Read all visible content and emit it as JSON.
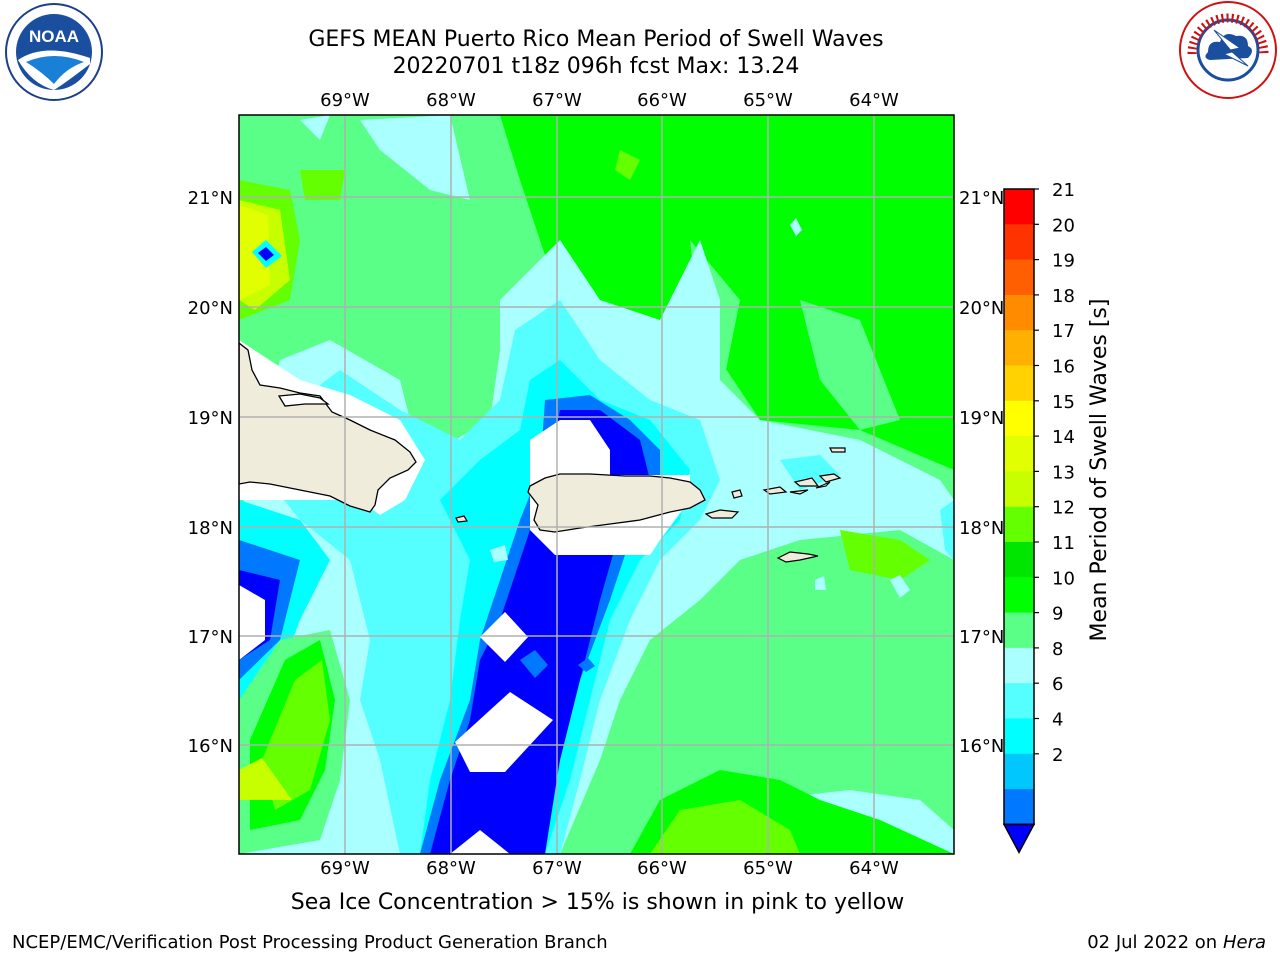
{
  "header": {
    "title_line1": "GEFS MEAN Puerto Rico Mean Period of Swell Waves",
    "title_line2": "20220701 t18z 096h fcst   Max: 13.24"
  },
  "logos": {
    "left": {
      "text": "NOAA",
      "icon": "noaa-logo"
    },
    "right": {
      "text": "NATIONAL WEATHER SERVICE",
      "icon": "nws-logo"
    }
  },
  "map": {
    "lon_labels": [
      "69°W",
      "68°W",
      "67°W",
      "66°W",
      "65°W",
      "64°W"
    ],
    "lat_labels": [
      "21°N",
      "20°N",
      "19°N",
      "18°N",
      "17°N",
      "16°N"
    ],
    "land_color": "#efecdc",
    "grid_color": "#b0b0b0"
  },
  "colorbar": {
    "label": "Mean Period of Swell Waves [s]",
    "ticks": [
      "21",
      "20",
      "19",
      "18",
      "17",
      "16",
      "15",
      "14",
      "13",
      "12",
      "11",
      "10",
      "9",
      "8",
      "6",
      "4",
      "2"
    ],
    "colors": [
      "#ff0000",
      "#ff3300",
      "#ff5f00",
      "#ff8c00",
      "#ffb000",
      "#ffd200",
      "#ffff00",
      "#e1ff00",
      "#c8ff00",
      "#64ff00",
      "#00e600",
      "#00ff00",
      "#5aff88",
      "#aaffff",
      "#55ffff",
      "#00ffff",
      "#00c8ff",
      "#0078ff",
      "#0000ff"
    ]
  },
  "note": "Sea Ice Concentration > 15% is shown in pink to yellow",
  "footer": {
    "left": "NCEP/EMC/Verification Post Processing Product Generation Branch",
    "right_prefix": "02 Jul 2022 on ",
    "right_host": "Hera"
  }
}
